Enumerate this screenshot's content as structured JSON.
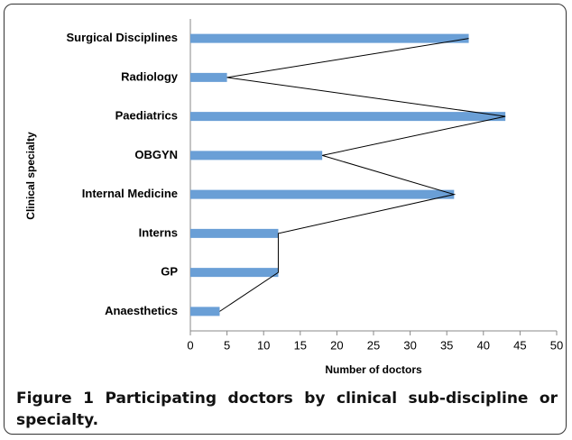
{
  "chart_data": {
    "type": "bar",
    "orientation": "horizontal",
    "categories": [
      "Surgical Disciplines",
      "Radiology",
      "Paediatrics",
      "OBGYN",
      "Internal Medicine",
      "Interns",
      "GP",
      "Anaesthetics"
    ],
    "values": [
      38,
      5,
      43,
      18,
      36,
      12,
      12,
      4
    ],
    "color": "#6a9fd6",
    "line_color": "#000000",
    "xlim": [
      0,
      50
    ],
    "xticks": [
      0,
      5,
      10,
      15,
      20,
      25,
      30,
      35,
      40,
      45,
      50
    ],
    "xlabel": "Number of doctors",
    "ylabel": "Clinical specialty"
  },
  "caption": {
    "label": "Figure 1",
    "text": "Participating doctors by clinical sub-discipline or specialty."
  }
}
